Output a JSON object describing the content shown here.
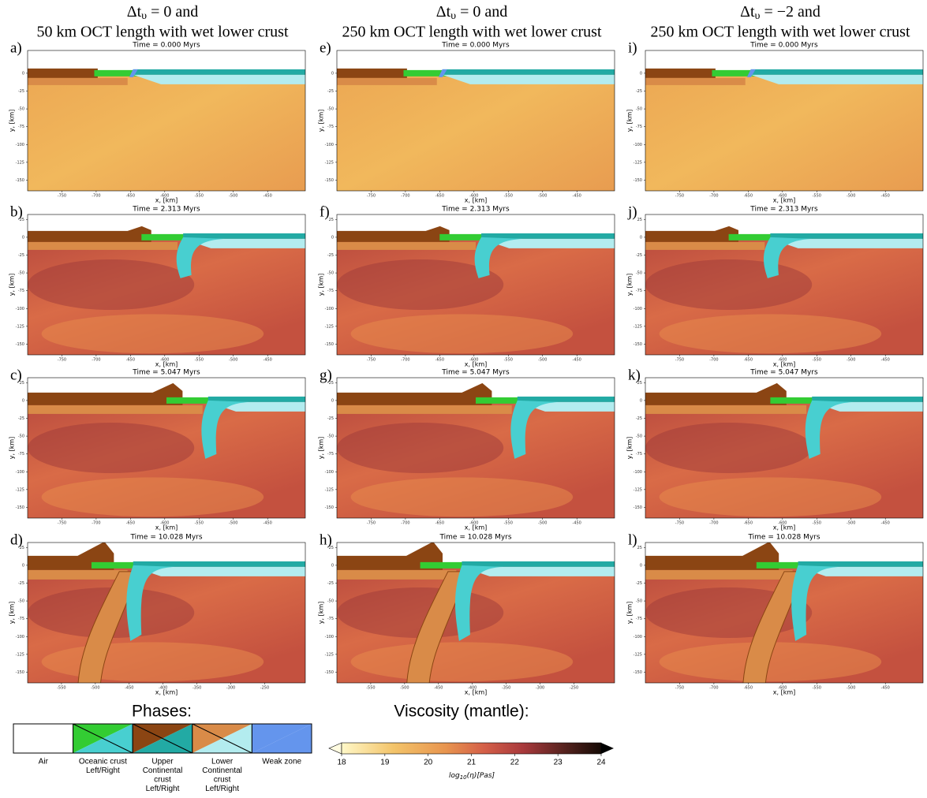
{
  "headers": [
    {
      "line1": {
        "symbol": "Δt",
        "subscript": "υ",
        "rest": " = 0 and"
      },
      "line2": "50 km OCT length with wet lower crust"
    },
    {
      "line1": {
        "symbol": "Δt",
        "subscript": "υ",
        "rest": " = 0 and"
      },
      "line2": "250 km OCT length with wet lower crust"
    },
    {
      "line1": {
        "symbol": "Δt",
        "subscript": "υ",
        "rest": " = −2 and"
      },
      "line2": "250 km OCT length with wet lower crust"
    }
  ],
  "panels": [
    {
      "label": "a)",
      "time": "Time = 0.000 Myrs",
      "x_label": "x, [km]",
      "y_label": "y, [km]",
      "xlim": [
        -800,
        -395
      ],
      "ylim": [
        -165,
        32
      ],
      "xticks": [
        -750,
        -700,
        -650,
        -600,
        -550,
        -500,
        -450
      ],
      "yticks": [
        0,
        -25,
        -50,
        -75,
        -100,
        -125,
        -150
      ]
    },
    {
      "label": "e)",
      "time": "Time = 0.000 Myrs",
      "x_label": "x, [km]",
      "y_label": "y, [km]",
      "xlim": [
        -800,
        -395
      ],
      "ylim": [
        -165,
        32
      ],
      "xticks": [
        -750,
        -700,
        -650,
        -600,
        -550,
        -500,
        -450
      ],
      "yticks": [
        0,
        -25,
        -50,
        -75,
        -100,
        -125,
        -150
      ]
    },
    {
      "label": "i)",
      "time": "Time = 0.000 Myrs",
      "x_label": "x, [km]",
      "y_label": "y, [km]",
      "xlim": [
        -800,
        -395
      ],
      "ylim": [
        -165,
        32
      ],
      "xticks": [
        -750,
        -700,
        -650,
        -600,
        -550,
        -500,
        -450
      ],
      "yticks": [
        0,
        -25,
        -50,
        -75,
        -100,
        -125,
        -150
      ]
    },
    {
      "label": "b)",
      "time": "Time = 2.313 Myrs",
      "x_label": "x, [km]",
      "y_label": "y, [km]",
      "xlim": [
        -800,
        -395
      ],
      "ylim": [
        -165,
        32
      ],
      "xticks": [
        -750,
        -700,
        -650,
        -600,
        -550,
        -500,
        -450
      ],
      "yticks": [
        25,
        0,
        -25,
        -50,
        -75,
        -100,
        -125,
        -150
      ]
    },
    {
      "label": "f)",
      "time": "Time = 2.313 Myrs",
      "x_label": "x, [km]",
      "y_label": "y, [km]",
      "xlim": [
        -800,
        -395
      ],
      "ylim": [
        -165,
        32
      ],
      "xticks": [
        -750,
        -700,
        -650,
        -600,
        -550,
        -500,
        -450
      ],
      "yticks": [
        25,
        0,
        -25,
        -50,
        -75,
        -100,
        -125,
        -150
      ]
    },
    {
      "label": "j)",
      "time": "Time = 2.313 Myrs",
      "x_label": "x, [km]",
      "y_label": "y, [km]",
      "xlim": [
        -800,
        -395
      ],
      "ylim": [
        -165,
        32
      ],
      "xticks": [
        -750,
        -700,
        -650,
        -600,
        -550,
        -500,
        -450
      ],
      "yticks": [
        25,
        0,
        -25,
        -50,
        -75,
        -100,
        -125,
        -150
      ]
    },
    {
      "label": "c)",
      "time": "Time = 5.047 Myrs",
      "x_label": "x, [km]",
      "y_label": "y, [km]",
      "xlim": [
        -800,
        -395
      ],
      "ylim": [
        -165,
        32
      ],
      "xticks": [
        -750,
        -700,
        -650,
        -600,
        -550,
        -500,
        -450
      ],
      "yticks": [
        25,
        0,
        -25,
        -50,
        -75,
        -100,
        -125,
        -150
      ]
    },
    {
      "label": "g)",
      "time": "Time = 5.047 Myrs",
      "x_label": "x, [km]",
      "y_label": "y, [km]",
      "xlim": [
        -800,
        -395
      ],
      "ylim": [
        -165,
        32
      ],
      "xticks": [
        -750,
        -700,
        -650,
        -600,
        -550,
        -500,
        -450
      ],
      "yticks": [
        25,
        0,
        -25,
        -50,
        -75,
        -100,
        -125,
        -150
      ]
    },
    {
      "label": "k)",
      "time": "Time = 5.047 Myrs",
      "x_label": "x, [km]",
      "y_label": "y, [km]",
      "xlim": [
        -800,
        -395
      ],
      "ylim": [
        -165,
        32
      ],
      "xticks": [
        -750,
        -700,
        -650,
        -600,
        -550,
        -500,
        -450
      ],
      "yticks": [
        25,
        0,
        -25,
        -50,
        -75,
        -100,
        -125,
        -150
      ]
    },
    {
      "label": "d)",
      "time": "Time = 10.028 Myrs",
      "x_label": "x, [km]",
      "y_label": "y, [km]",
      "xlim": [
        -600,
        -190
      ],
      "ylim": [
        -165,
        32
      ],
      "xticks": [
        -550,
        -500,
        -450,
        -400,
        -350,
        -300,
        -250
      ],
      "yticks": [
        25,
        0,
        -25,
        -50,
        -75,
        -100,
        -125,
        -150
      ]
    },
    {
      "label": "h)",
      "time": "Time = 10.028 Myrs",
      "x_label": "x, [km]",
      "y_label": "y, [km]",
      "xlim": [
        -600,
        -190
      ],
      "ylim": [
        -165,
        32
      ],
      "xticks": [
        -550,
        -500,
        -450,
        -400,
        -350,
        -300,
        -250
      ],
      "yticks": [
        25,
        0,
        -25,
        -50,
        -75,
        -100,
        -125,
        -150
      ]
    },
    {
      "label": "l)",
      "time": "Time = 10.028 Myrs",
      "x_label": "x, [km]",
      "y_label": "y, [km]",
      "xlim": [
        -800,
        -395
      ],
      "ylim": [
        -165,
        32
      ],
      "xticks": [
        -750,
        -700,
        -650,
        -600,
        -550,
        -500,
        -450
      ],
      "yticks": [
        25,
        0,
        -25,
        -50,
        -75,
        -100,
        -125,
        -150
      ]
    }
  ],
  "phases": {
    "title": "Phases:",
    "items": [
      {
        "lines": [
          "Air"
        ]
      },
      {
        "lines": [
          "Oceanic crust",
          "Left/Right"
        ]
      },
      {
        "lines": [
          "Upper",
          "Continental",
          "crust",
          "Left/Right"
        ]
      },
      {
        "lines": [
          "Lower",
          "Continental",
          "crust",
          "Left/Right"
        ]
      },
      {
        "lines": [
          "Weak zone"
        ]
      }
    ]
  },
  "colorbar": {
    "title": "Viscosity (mantle):",
    "lim": [
      18,
      24
    ],
    "ticks": [
      18,
      19,
      20,
      21,
      22,
      23,
      24
    ],
    "label": {
      "base": "log",
      "sub": "10",
      "rest": "(η)[Pas]"
    }
  }
}
